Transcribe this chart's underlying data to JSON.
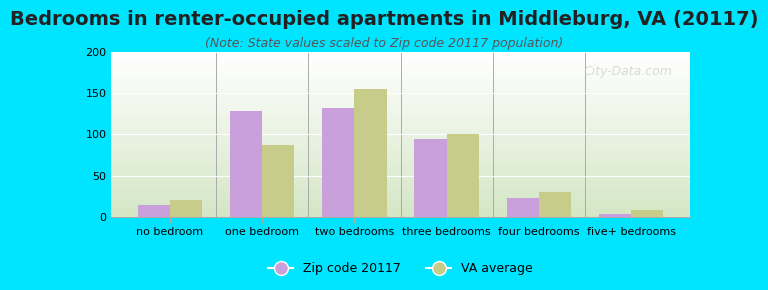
{
  "title": "Bedrooms in renter-occupied apartments in Middleburg, VA (20117)",
  "subtitle": "(Note: State values scaled to Zip code 20117 population)",
  "categories": [
    "no bedroom",
    "one bedroom",
    "two bedrooms",
    "three bedrooms",
    "four bedrooms",
    "five+ bedrooms"
  ],
  "zip_values": [
    15,
    128,
    132,
    95,
    23,
    4
  ],
  "va_values": [
    20,
    87,
    155,
    101,
    30,
    8
  ],
  "zip_color": "#c9a0dc",
  "va_color": "#c8cc8a",
  "background_color": "#00e5ff",
  "ylim": [
    0,
    200
  ],
  "yticks": [
    0,
    50,
    100,
    150,
    200
  ],
  "bar_width": 0.35,
  "title_fontsize": 14,
  "subtitle_fontsize": 9,
  "tick_fontsize": 8,
  "legend_fontsize": 9,
  "watermark": "City-Data.com"
}
